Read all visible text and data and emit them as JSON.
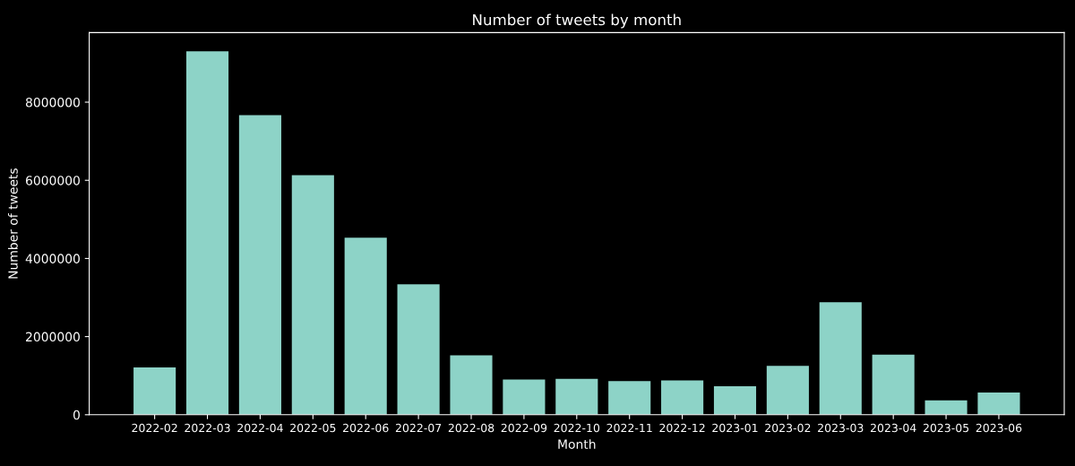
{
  "chart_data": {
    "type": "bar",
    "title": "Number of tweets by month",
    "xlabel": "Month",
    "ylabel": "Number of tweets",
    "categories": [
      "2022-02",
      "2022-03",
      "2022-04",
      "2022-05",
      "2022-06",
      "2022-07",
      "2022-08",
      "2022-09",
      "2022-10",
      "2022-11",
      "2022-12",
      "2023-01",
      "2023-02",
      "2023-03",
      "2023-04",
      "2023-05",
      "2023-06"
    ],
    "values": [
      1210000,
      9300000,
      7670000,
      6130000,
      4530000,
      3340000,
      1520000,
      900000,
      920000,
      860000,
      880000,
      730000,
      1250000,
      2880000,
      1540000,
      370000,
      570000
    ],
    "color": "#8dd3c7",
    "ylim": [
      0,
      9780000
    ],
    "yticks": [
      0,
      2000000,
      4000000,
      6000000,
      8000000
    ],
    "grid": false,
    "legend": false
  }
}
